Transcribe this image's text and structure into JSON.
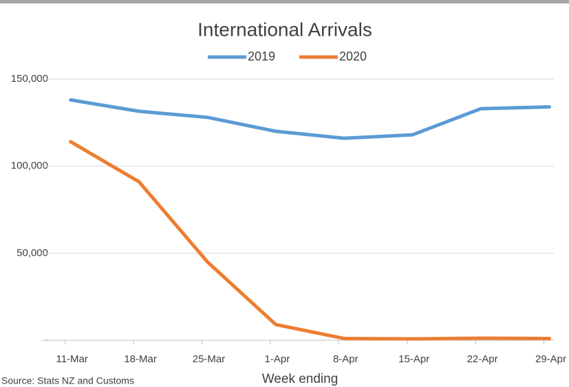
{
  "chart_data": {
    "type": "line",
    "title": "International Arrivals",
    "x_label": "Week ending",
    "source": "Source: Stats NZ and Customs",
    "categories": [
      "11-Mar",
      "18-Mar",
      "25-Mar",
      "1-Apr",
      "8-Apr",
      "15-Apr",
      "22-Apr",
      "29-Apr"
    ],
    "series": [
      {
        "name": "2019",
        "color": "#5b9bd5",
        "values": [
          138000,
          131500,
          128000,
          120000,
          116000,
          118000,
          133000,
          134000
        ]
      },
      {
        "name": "2020",
        "color": "#ed7d31",
        "values": [
          114000,
          91000,
          45000,
          9000,
          1000,
          800,
          1200,
          1000
        ]
      }
    ],
    "ylim": [
      0,
      150000
    ],
    "yticks": [
      {
        "value": 0,
        "label": "-"
      },
      {
        "value": 50000,
        "label": "50,000"
      },
      {
        "value": 100000,
        "label": "100,000"
      },
      {
        "value": 150000,
        "label": "150,000"
      }
    ],
    "grid": true
  }
}
